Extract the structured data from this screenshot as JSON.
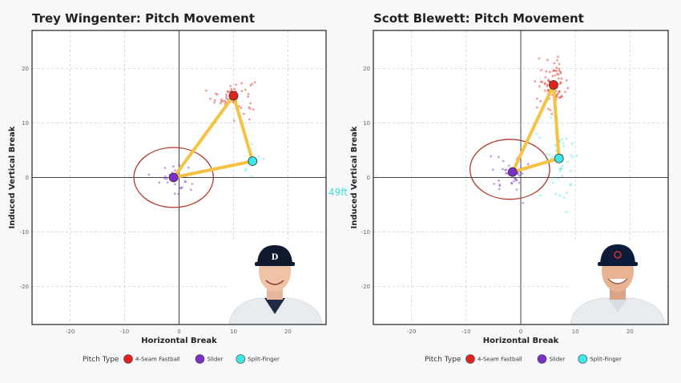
{
  "overlay_text": "49ft",
  "legend_title": "Pitch Type",
  "chart_data": [
    {
      "type": "scatter",
      "title": "Trey Wingenter: Pitch Movement",
      "xlabel": "Horizontal Break",
      "ylabel": "Induced Vertical Break",
      "xlim": [
        -27,
        27
      ],
      "ylim": [
        -27,
        27
      ],
      "xticks": [
        -20,
        -10,
        0,
        10,
        20
      ],
      "yticks": [
        -20,
        -10,
        0,
        10,
        20
      ],
      "grid": true,
      "legend": "bottom",
      "series": [
        {
          "name": "4-Seam Fastball",
          "color": "#e2231a",
          "mean": [
            10,
            15
          ],
          "spread": [
            2.0,
            1.6
          ],
          "n": 55
        },
        {
          "name": "Slider",
          "color": "#7b2fc9",
          "mean": [
            -1,
            0
          ],
          "spread": [
            1.3,
            1.4
          ],
          "n": 35
        },
        {
          "name": "Split-Finger",
          "color": "#3fe6e6",
          "mean": [
            13.5,
            3
          ],
          "spread": [
            1.0,
            2.0
          ],
          "n": 8
        }
      ],
      "release_ellipse": {
        "center": [
          -1,
          0
        ],
        "rx": 7.3,
        "ry": 5.5,
        "color": "#b0382b"
      },
      "triangle_color": "#f5c242"
    },
    {
      "type": "scatter",
      "title": "Scott Blewett: Pitch Movement",
      "xlabel": "Horizontal Break",
      "ylabel": "Induced Vertical Break",
      "xlim": [
        -27,
        27
      ],
      "ylim": [
        -27,
        27
      ],
      "xticks": [
        -20,
        -10,
        0,
        10,
        20
      ],
      "yticks": [
        -20,
        -10,
        0,
        10,
        20
      ],
      "grid": true,
      "legend": "bottom",
      "series": [
        {
          "name": "4-Seam Fastball",
          "color": "#e2231a",
          "mean": [
            6,
            17
          ],
          "spread": [
            1.4,
            2.2
          ],
          "n": 80
        },
        {
          "name": "Slider",
          "color": "#7b2fc9",
          "mean": [
            -1.5,
            1
          ],
          "spread": [
            1.5,
            1.6
          ],
          "n": 45
        },
        {
          "name": "Split-Finger",
          "color": "#3fe6e6",
          "mean": [
            7,
            3.5
          ],
          "spread": [
            2.0,
            3.8
          ],
          "n": 45
        }
      ],
      "release_ellipse": {
        "center": [
          -2,
          1.5
        ],
        "rx": 7.3,
        "ry": 5.5,
        "color": "#b0382b"
      },
      "triangle_color": "#f5c242"
    }
  ]
}
